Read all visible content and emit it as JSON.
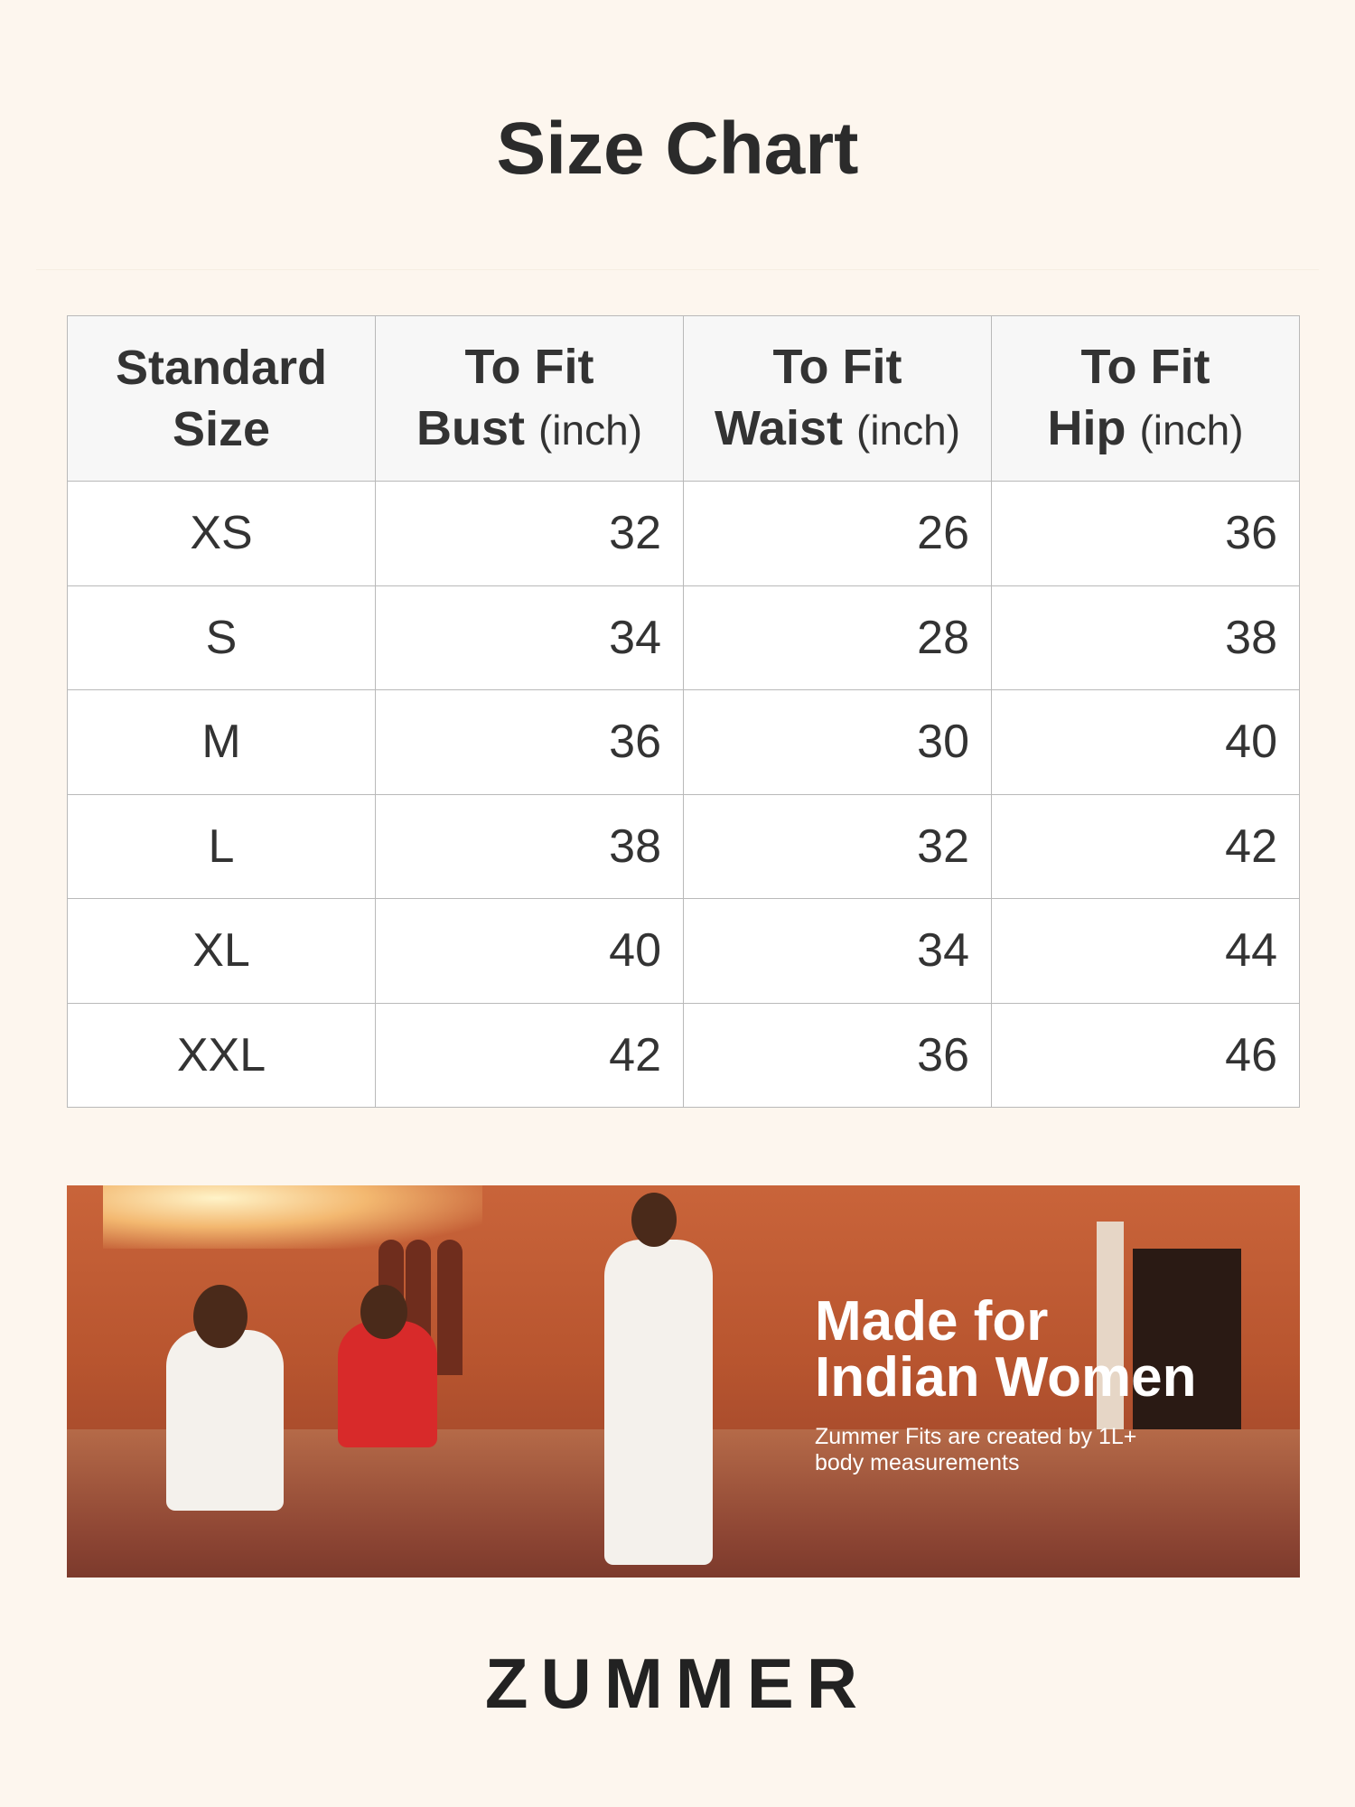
{
  "title": "Size Chart",
  "table": {
    "headers": [
      {
        "line1": "Standard",
        "line2": "Size",
        "unit": ""
      },
      {
        "line1": "To Fit",
        "line2": "Bust",
        "unit": "(inch)"
      },
      {
        "line1": "To Fit",
        "line2": "Waist",
        "unit": "(inch)"
      },
      {
        "line1": "To Fit",
        "line2": "Hip",
        "unit": "(inch)"
      }
    ],
    "rows": [
      [
        "XS",
        "32",
        "26",
        "36"
      ],
      [
        "S",
        "34",
        "28",
        "38"
      ],
      [
        "M",
        "36",
        "30",
        "40"
      ],
      [
        "L",
        "38",
        "32",
        "42"
      ],
      [
        "XL",
        "40",
        "34",
        "44"
      ],
      [
        "XXL",
        "42",
        "36",
        "46"
      ]
    ]
  },
  "banner": {
    "headline_1": "Made for",
    "headline_2": "Indian Women",
    "sub_1": "Zummer Fits are created by 1L+",
    "sub_2": "body measurements"
  },
  "brand": "ZUMMER",
  "colors": {
    "background": "#fdf6ee",
    "header_bg": "#f7f7f7",
    "text": "#2e2e2e"
  }
}
